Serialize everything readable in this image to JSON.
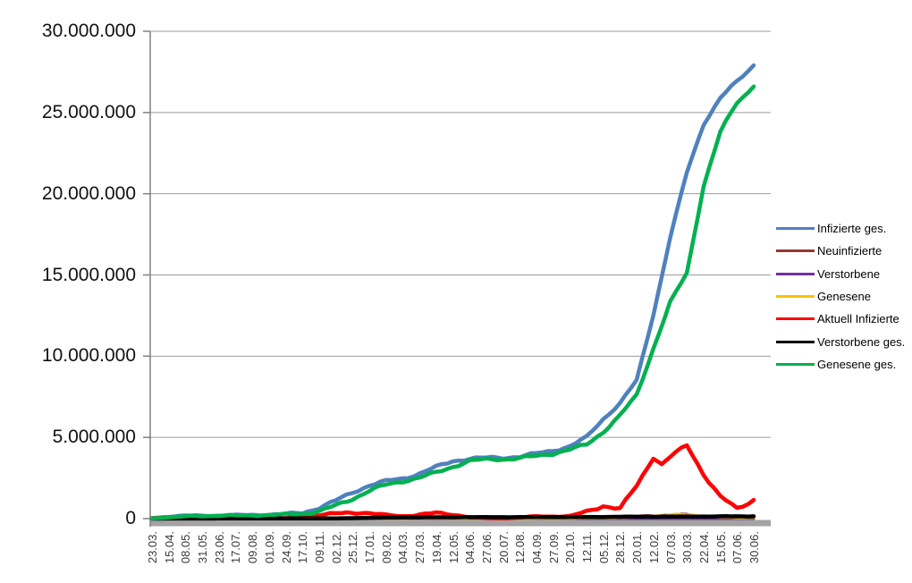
{
  "chart_data": {
    "type": "line",
    "title": "",
    "legend_position": "right",
    "grid": "horizontal",
    "categories": [
      "23.03.",
      "15.04.",
      "08.05.",
      "31.05.",
      "23.06.",
      "17.07.",
      "09.08.",
      "01.09.",
      "24.09.",
      "17.10.",
      "09.11.",
      "02.12.",
      "25.12.",
      "17.01.",
      "09.02.",
      "04.03.",
      "27.03.",
      "19.04.",
      "12.05.",
      "04.06.",
      "27.06.",
      "20.07.",
      "12.08.",
      "04.09.",
      "27.09.",
      "20.10.",
      "12.11.",
      "05.12.",
      "28.12.",
      "20.01.",
      "12.02.",
      "07.03.",
      "30.03.",
      "22.04.",
      "15.05.",
      "07.06.",
      "30.06."
    ],
    "y_axis": {
      "min": 0,
      "max": 30000000,
      "step": 5000000,
      "tick_labels": [
        "30.000.000",
        "25.000.000",
        "20.000.000",
        "15.000.000",
        "10.000.000",
        "5.000.000",
        "0"
      ]
    },
    "axis_colors": {
      "gridline": "#9c9c9c",
      "axis_line": "#808080",
      "x_axis_band": "#a3a3a3"
    },
    "series": [
      {
        "name": "Infizierte ges.",
        "color": "#4F81BD",
        "values": [
          30000,
          130000,
          170000,
          180000,
          190000,
          200000,
          220000,
          240000,
          280000,
          360000,
          670000,
          1100000,
          1620000,
          2050000,
          2300000,
          2480000,
          2770000,
          3170000,
          3550000,
          3700000,
          3730000,
          3760000,
          3820000,
          4000000,
          4200000,
          4450000,
          5000000,
          6150000,
          7100000,
          8500000,
          12600000,
          17300000,
          21300000,
          24300000,
          25900000,
          26900000,
          27900000
        ]
      },
      {
        "name": "Neuinfizierte",
        "color": "#963634",
        "values": [
          4000,
          3000,
          1000,
          400,
          500,
          500,
          1000,
          1500,
          2000,
          7000,
          20000,
          18000,
          25000,
          14000,
          8000,
          11000,
          20000,
          25000,
          15000,
          3000,
          1000,
          2000,
          5000,
          10000,
          8000,
          17000,
          50000,
          70000,
          40000,
          130000,
          220000,
          210000,
          240000,
          120000,
          50000,
          35000,
          110000
        ]
      },
      {
        "name": "Verstorbene",
        "color": "#7030A0",
        "values": [
          50,
          200,
          150,
          50,
          20,
          10,
          10,
          10,
          20,
          30,
          150,
          400,
          500,
          700,
          600,
          300,
          200,
          250,
          200,
          100,
          50,
          30,
          40,
          60,
          70,
          80,
          150,
          250,
          300,
          200,
          150,
          200,
          250,
          200,
          150,
          100,
          80
        ]
      },
      {
        "name": "Genesene",
        "color": "#FFC000",
        "values": [
          2000,
          4000,
          2000,
          1000,
          500,
          500,
          1000,
          1000,
          2000,
          4000,
          12000,
          18000,
          20000,
          18000,
          10000,
          9000,
          15000,
          22000,
          18000,
          8000,
          2000,
          1000,
          3000,
          8000,
          8000,
          12000,
          30000,
          55000,
          50000,
          90000,
          180000,
          220000,
          230000,
          180000,
          80000,
          40000,
          70000
        ]
      },
      {
        "name": "Aktuell Infizierte",
        "color": "#FF0000",
        "values": [
          30000,
          60000,
          20000,
          10000,
          10000,
          10000,
          10000,
          20000,
          30000,
          60000,
          220000,
          300000,
          390000,
          320000,
          210000,
          160000,
          240000,
          330000,
          270000,
          80000,
          30000,
          20000,
          60000,
          130000,
          140000,
          150000,
          400000,
          800000,
          620000,
          2000000,
          3800000,
          3800000,
          4500000,
          2750000,
          1350000,
          600000,
          1150000
        ],
        "extra_points": [
          [
            12.4,
            420000
          ],
          [
            30.5,
            3350000
          ]
        ]
      },
      {
        "name": "Verstorbene ges.",
        "color": "#000000",
        "values": [
          200,
          3000,
          7000,
          8000,
          9000,
          9000,
          9300,
          9500,
          10000,
          10000,
          12000,
          17000,
          30000,
          48000,
          62000,
          71000,
          76000,
          81000,
          85000,
          89000,
          90000,
          91000,
          92000,
          92200,
          93000,
          95000,
          98000,
          103000,
          111000,
          116000,
          120000,
          124000,
          128000,
          133000,
          137000,
          139000,
          141000
        ]
      },
      {
        "name": "Genesene ges.",
        "color": "#00B050",
        "values": [
          10000,
          70000,
          140000,
          170000,
          180000,
          190000,
          210000,
          220000,
          250000,
          300000,
          450000,
          800000,
          1220000,
          1720000,
          2080000,
          2310000,
          2520000,
          2830000,
          3200000,
          3550000,
          3640000,
          3670000,
          3720000,
          3850000,
          4020000,
          4250000,
          4550000,
          5350000,
          6350000,
          7600000,
          10500000,
          13300000,
          15100000,
          20500000,
          23800000,
          25600000,
          26600000
        ]
      }
    ]
  }
}
